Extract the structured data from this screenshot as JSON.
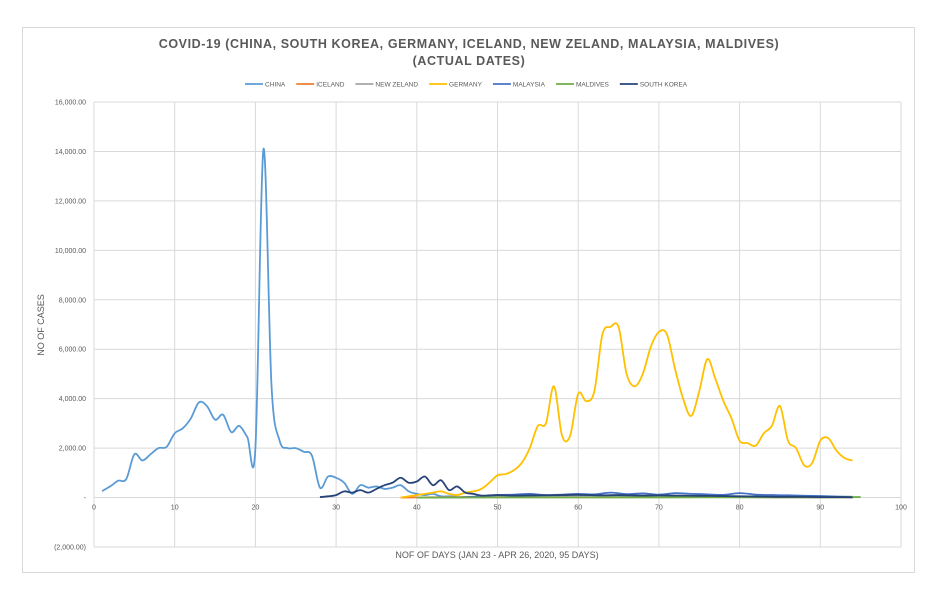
{
  "chart_data": {
    "type": "line",
    "title": "COVID-19 (CHINA, SOUTH KOREA, GERMANY, ICELAND, NEW ZELAND, MALAYSIA, MALDIVES)",
    "subtitle": "(ACTUAL DATES)",
    "xlabel": "NOF OF DAYS (JAN 23 - APR 26, 2020, 95 DAYS)",
    "ylabel": "NO OF CASES",
    "xlim": [
      0,
      100
    ],
    "ylim": [
      -2000,
      16000
    ],
    "x_ticks": [
      0,
      10,
      20,
      30,
      40,
      50,
      60,
      70,
      80,
      90,
      100
    ],
    "x_tick_labels": [
      "0",
      "10",
      "20",
      "30",
      "40",
      "50",
      "60",
      "70",
      "80",
      "90",
      "100"
    ],
    "y_ticks": [
      -2000,
      0,
      2000,
      4000,
      6000,
      8000,
      10000,
      12000,
      14000,
      16000
    ],
    "y_tick_labels": [
      "(2,000.00)",
      "-",
      "2,000.00",
      "4,000.00",
      "6,000.00",
      "8,000.00",
      "10,000.00",
      "12,000.00",
      "14,000.00",
      "16,000.00"
    ],
    "grid": true,
    "legend_position": "top",
    "series": [
      {
        "name": "CHINA",
        "color": "#5b9bd5",
        "x": [
          1,
          2,
          3,
          4,
          5,
          6,
          7,
          8,
          9,
          10,
          11,
          12,
          13,
          14,
          15,
          16,
          17,
          18,
          19,
          20,
          21,
          22,
          23,
          24,
          25,
          26,
          27,
          28,
          29,
          30,
          31,
          32,
          33,
          34,
          35,
          36,
          37,
          38,
          39,
          40,
          41,
          42,
          43,
          44,
          45
        ],
        "y": [
          260,
          450,
          680,
          750,
          1750,
          1500,
          1750,
          2000,
          2050,
          2600,
          2800,
          3200,
          3850,
          3700,
          3150,
          3350,
          2650,
          2900,
          2450,
          2000,
          14100,
          4500,
          2300,
          2000,
          2000,
          1850,
          1700,
          400,
          850,
          800,
          600,
          150,
          500,
          400,
          450,
          350,
          400,
          500,
          250,
          150,
          100,
          150,
          50,
          50,
          30
        ]
      },
      {
        "name": "ICELAND",
        "color": "#ed7d31",
        "x": [
          38,
          42,
          46,
          50,
          55,
          60,
          65,
          70,
          75,
          80,
          85,
          90,
          94
        ],
        "y": [
          0,
          10,
          20,
          50,
          60,
          80,
          60,
          50,
          40,
          20,
          10,
          5,
          0
        ]
      },
      {
        "name": "NEW ZELAND",
        "color": "#a5a5a5",
        "x": [
          40,
          45,
          50,
          55,
          60,
          65,
          70,
          75,
          80,
          85,
          90,
          94
        ],
        "y": [
          0,
          5,
          20,
          50,
          70,
          80,
          60,
          40,
          20,
          10,
          5,
          0
        ]
      },
      {
        "name": "GERMANY",
        "color": "#ffc000",
        "x": [
          38,
          39,
          40,
          41,
          42,
          43,
          44,
          45,
          46,
          47,
          48,
          49,
          50,
          51,
          52,
          53,
          54,
          55,
          56,
          57,
          58,
          59,
          60,
          61,
          62,
          63,
          64,
          65,
          66,
          67,
          68,
          69,
          70,
          71,
          72,
          73,
          74,
          75,
          76,
          77,
          78,
          79,
          80,
          81,
          82,
          83,
          84,
          85,
          86,
          87,
          88,
          89,
          90,
          91,
          92,
          93,
          94
        ],
        "y": [
          0,
          50,
          100,
          150,
          200,
          250,
          150,
          100,
          200,
          250,
          350,
          600,
          900,
          950,
          1100,
          1400,
          2000,
          2900,
          3000,
          4500,
          2500,
          2500,
          4200,
          3900,
          4300,
          6600,
          6900,
          6900,
          5000,
          4500,
          5000,
          6100,
          6700,
          6600,
          5200,
          4000,
          3300,
          4300,
          5600,
          4800,
          3900,
          3200,
          2300,
          2200,
          2100,
          2600,
          2900,
          3700,
          2300,
          2000,
          1300,
          1400,
          2300,
          2400,
          1900,
          1600,
          1500
        ]
      },
      {
        "name": "MALAYSIA",
        "color": "#4472c4",
        "x": [
          45,
          48,
          50,
          52,
          54,
          56,
          58,
          60,
          62,
          64,
          66,
          68,
          70,
          72,
          74,
          76,
          78,
          80,
          82,
          84,
          86,
          88,
          90,
          92,
          94
        ],
        "y": [
          0,
          50,
          100,
          120,
          150,
          100,
          120,
          150,
          130,
          200,
          140,
          170,
          120,
          180,
          150,
          130,
          110,
          180,
          120,
          100,
          90,
          70,
          60,
          40,
          30
        ]
      },
      {
        "name": "MALDIVES",
        "color": "#70ad47",
        "x": [
          40,
          50,
          60,
          70,
          80,
          90,
          95
        ],
        "y": [
          0,
          2,
          3,
          5,
          8,
          10,
          20
        ]
      },
      {
        "name": "SOUTH KOREA",
        "color": "#264478",
        "x": [
          28,
          29,
          30,
          31,
          32,
          33,
          34,
          35,
          36,
          37,
          38,
          39,
          40,
          41,
          42,
          43,
          44,
          45,
          46,
          47,
          48,
          49,
          50,
          52,
          55,
          58,
          60,
          63,
          65,
          68,
          70,
          72,
          75,
          78,
          80,
          83,
          85,
          88,
          90,
          93,
          94
        ],
        "y": [
          20,
          50,
          100,
          250,
          200,
          300,
          200,
          350,
          500,
          600,
          800,
          600,
          650,
          850,
          500,
          700,
          300,
          450,
          200,
          150,
          80,
          90,
          100,
          80,
          90,
          100,
          110,
          90,
          100,
          80,
          90,
          80,
          70,
          60,
          50,
          40,
          30,
          30,
          20,
          20,
          10
        ]
      }
    ]
  }
}
